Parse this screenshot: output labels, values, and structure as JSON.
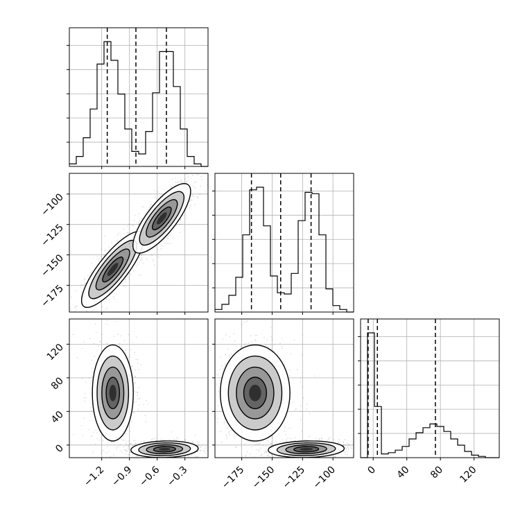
{
  "chart_data": {
    "type": "corner",
    "grid": true,
    "parameters": [
      {
        "name": "",
        "axis_range": [
          -1.55,
          -0.05
        ],
        "ticks": [
          -1.2,
          -0.9,
          -0.6,
          -0.3
        ],
        "tick_labels": [
          "−1.2",
          "−0.9",
          "−0.6",
          "−0.3"
        ]
      },
      {
        "name": "",
        "axis_range": [
          -197,
          -83
        ],
        "ticks": [
          -175,
          -150,
          -125,
          -100
        ],
        "tick_labels": [
          "−175",
          "−150",
          "−125",
          "−100"
        ]
      },
      {
        "name": "",
        "axis_range": [
          -15,
          150
        ],
        "ticks": [
          0,
          40,
          80,
          120
        ],
        "tick_labels": [
          "0",
          "40",
          "80",
          "120"
        ]
      }
    ],
    "histograms": [
      {
        "bin_edges": [
          -1.55,
          -1.475,
          -1.4,
          -1.325,
          -1.25,
          -1.175,
          -1.1,
          -1.025,
          -0.95,
          -0.875,
          -0.8,
          -0.725,
          -0.65,
          -0.575,
          -0.5,
          -0.425,
          -0.35,
          -0.275,
          -0.2,
          -0.125,
          -0.05
        ],
        "counts": [
          0.02,
          0.08,
          0.23,
          0.46,
          0.82,
          1.0,
          0.85,
          0.58,
          0.3,
          0.12,
          0.1,
          0.28,
          0.59,
          0.92,
          0.92,
          0.64,
          0.3,
          0.08,
          0.02,
          0.0
        ],
        "quantiles": [
          -1.14,
          -0.83,
          -0.5
        ]
      },
      {
        "bin_edges": [
          -197,
          -191.3,
          -185.6,
          -179.9,
          -174.2,
          -168.5,
          -162.8,
          -157.1,
          -151.4,
          -145.7,
          -140,
          -134.3,
          -128.6,
          -122.9,
          -117.2,
          -111.5,
          -105.8,
          -100.1,
          -94.4,
          -88.7,
          -83
        ],
        "counts": [
          0.02,
          0.06,
          0.13,
          0.27,
          0.6,
          0.95,
          0.97,
          0.67,
          0.28,
          0.15,
          0.14,
          0.3,
          0.71,
          0.93,
          0.92,
          0.6,
          0.18,
          0.05,
          0.02,
          0.0
        ],
        "quantiles": [
          -167,
          -143,
          -118
        ]
      },
      {
        "bin_edges": [
          -15,
          -6.75,
          1.5,
          9.75,
          18,
          26.25,
          34.5,
          42.75,
          51,
          59.25,
          67.5,
          75.75,
          84,
          92.25,
          100.5,
          108.75,
          117,
          125.25,
          133.5,
          141.75,
          150
        ],
        "counts": [
          0.0,
          1.0,
          0.41,
          0.03,
          0.04,
          0.06,
          0.09,
          0.15,
          0.2,
          0.24,
          0.27,
          0.25,
          0.21,
          0.15,
          0.1,
          0.05,
          0.02,
          0.01,
          0.0,
          0.0
        ],
        "quantiles": [
          -6,
          5,
          74
        ]
      }
    ],
    "density_panels": [
      {
        "x": 0,
        "y": 1,
        "clusters": [
          {
            "center": [
              -1.08,
              -162
            ],
            "spread": [
              0.13,
              12
            ],
            "corr": 0.82,
            "weight": 0.52
          },
          {
            "center": [
              -0.55,
              -120
            ],
            "spread": [
              0.12,
              11
            ],
            "corr": 0.78,
            "weight": 0.48
          }
        ]
      },
      {
        "x": 0,
        "y": 2,
        "clusters": [
          {
            "center": [
              -1.08,
              62
            ],
            "spread": [
              0.085,
              22
            ],
            "corr": 0.0,
            "weight": 0.5
          },
          {
            "center": [
              -0.52,
              -5
            ],
            "spread": [
              0.14,
              3.8
            ],
            "corr": 0.1,
            "weight": 0.5
          }
        ]
      },
      {
        "x": 1,
        "y": 2,
        "clusters": [
          {
            "center": [
              -164,
              62
            ],
            "spread": [
              11,
              22
            ],
            "corr": 0.0,
            "weight": 0.5
          },
          {
            "center": [
              -122,
              -5
            ],
            "spread": [
              12,
              3.8
            ],
            "corr": 0.1,
            "weight": 0.5
          }
        ]
      }
    ]
  }
}
